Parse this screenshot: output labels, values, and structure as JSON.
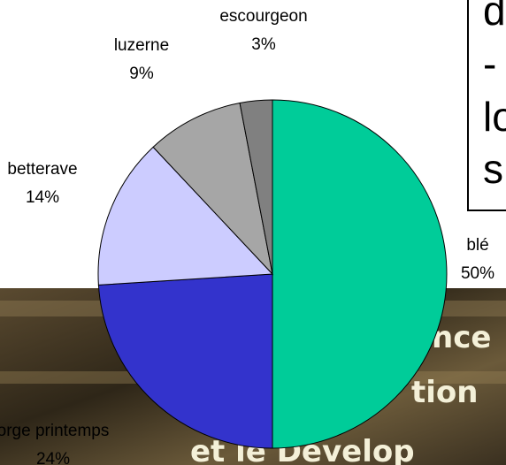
{
  "chart_data": {
    "type": "pie",
    "categories": [
      "blé",
      "orge printemps",
      "betterave",
      "luzerne",
      "escourgeon"
    ],
    "values": [
      50,
      24,
      14,
      9,
      3
    ],
    "value_labels": [
      "50%",
      "24%",
      "14%",
      "9%",
      "3%"
    ],
    "colors": [
      "#00cc99",
      "#3333cc",
      "#ccccff",
      "#a6a6a6",
      "#808080"
    ]
  },
  "text_box_lines": [
    "d",
    "-",
    "lo",
    "s"
  ],
  "banner_text": [
    "nce",
    "tion",
    "et le Dévelop"
  ]
}
